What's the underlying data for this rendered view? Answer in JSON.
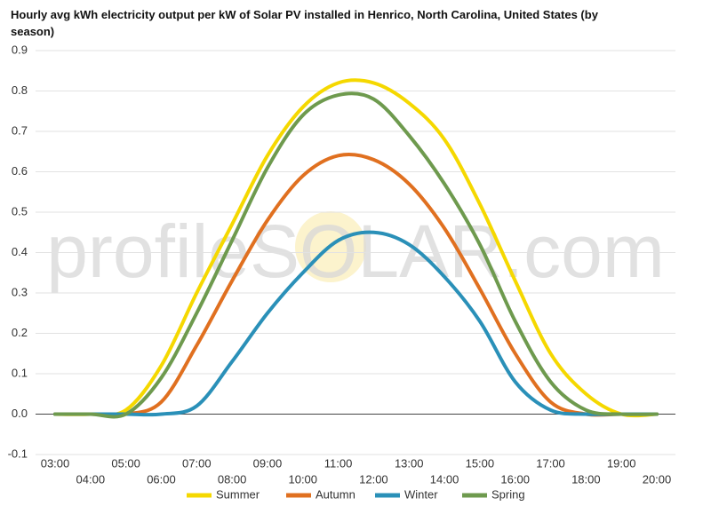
{
  "chart_data": {
    "type": "line",
    "title": "Hourly avg kWh electricity output per kW of Solar PV installed in Henrico, North Carolina, United States (by season)",
    "watermark": "profileSOLAR.com",
    "categories": [
      "03:00",
      "04:00",
      "05:00",
      "06:00",
      "07:00",
      "08:00",
      "09:00",
      "10:00",
      "11:00",
      "12:00",
      "13:00",
      "14:00",
      "15:00",
      "16:00",
      "17:00",
      "18:00",
      "19:00",
      "20:00"
    ],
    "series": [
      {
        "name": "Summer",
        "color": "#f5d800",
        "values": [
          0,
          0,
          0.01,
          0.12,
          0.3,
          0.47,
          0.64,
          0.76,
          0.82,
          0.82,
          0.77,
          0.68,
          0.52,
          0.33,
          0.15,
          0.05,
          0,
          0
        ]
      },
      {
        "name": "Autumn",
        "color": "#e07020",
        "values": [
          0,
          0,
          0,
          0.03,
          0.17,
          0.33,
          0.48,
          0.59,
          0.64,
          0.63,
          0.57,
          0.46,
          0.31,
          0.15,
          0.03,
          0,
          0,
          0
        ]
      },
      {
        "name": "Winter",
        "color": "#2a90b8",
        "values": [
          0,
          0,
          0,
          0,
          0.02,
          0.13,
          0.25,
          0.35,
          0.43,
          0.45,
          0.42,
          0.34,
          0.23,
          0.08,
          0.01,
          0,
          0,
          0
        ]
      },
      {
        "name": "Spring",
        "color": "#6e9a4e",
        "values": [
          0,
          0,
          0,
          0.09,
          0.25,
          0.43,
          0.61,
          0.74,
          0.79,
          0.78,
          0.69,
          0.57,
          0.42,
          0.23,
          0.08,
          0.01,
          0,
          0
        ]
      }
    ],
    "ylim": [
      -0.1,
      0.9
    ],
    "yticks": [
      -0.1,
      {
        "value": 0,
        "label": "0.0"
      },
      0.1,
      0.2,
      0.3,
      0.4,
      0.5,
      0.6,
      0.7,
      0.8,
      0.9
    ],
    "grid": true,
    "legend": "bottom"
  }
}
